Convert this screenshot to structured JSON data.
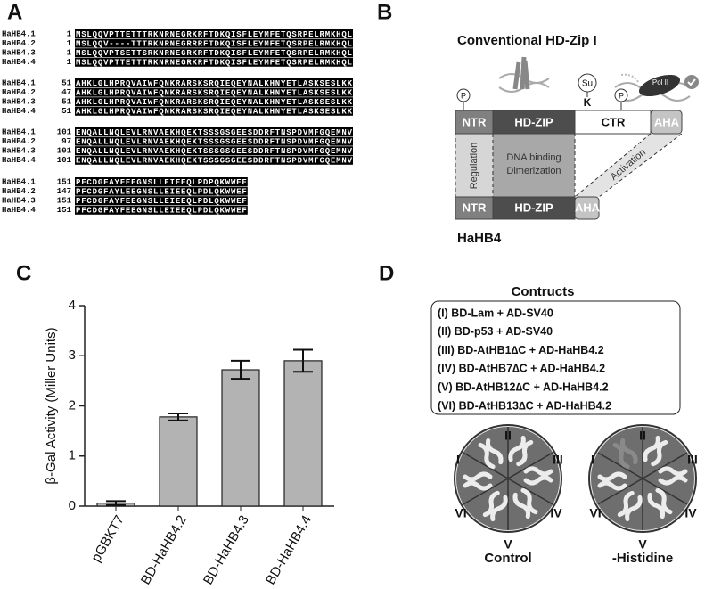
{
  "alignment": {
    "label": "A",
    "blocks": [
      {
        "rows": [
          {
            "name": "HaHB4.1",
            "start": 1,
            "sequence": "MSLQQVPTTETTTRKNRNEGRKRFTDKQISFLEYMFETQSRPELRMKHQL"
          },
          {
            "name": "HaHB4.2",
            "start": 1,
            "sequence": "MSLQQV----TTTRKNRNEGRRRFTDKQISFLEYMFETQSRPELRMKHQL"
          },
          {
            "name": "HaHB4.3",
            "start": 1,
            "sequence": "MSLQQVPTSETTSRKNRNEGRKRFTDKQISFLEYMFETQSRPELRMKHQL"
          },
          {
            "name": "HaHB4.4",
            "start": 1,
            "sequence": "MSLQQVPTTETTTRKNRNEGRKRFTDKQISFLEYMFETQSRPELRMKHQL"
          }
        ]
      },
      {
        "rows": [
          {
            "name": "HaHB4.1",
            "start": 51,
            "sequence": "AHKLGLHPRQVAIWFQNKRARSKSRQIEQEYNALKHNYETLASKSESLKK"
          },
          {
            "name": "HaHB4.2",
            "start": 47,
            "sequence": "AHKLGLHPRQVAIWFQNKRARSKSRQIEQEYNALKHNYETLASKSESLKK"
          },
          {
            "name": "HaHB4.3",
            "start": 51,
            "sequence": "AHKLGLHPRQVAIWFQNKRARSKSRQIEQEYNALKHNYETLASKSESLKK"
          },
          {
            "name": "HaHB4.4",
            "start": 51,
            "sequence": "AHKLGLHPRQVAIWFQNKRARSKSRQIEQEYNALKHNYETLASKSESLKK"
          }
        ]
      },
      {
        "rows": [
          {
            "name": "HaHB4.1",
            "start": 101,
            "sequence": "ENQALLNQLEVLRNVAEKHQEKTSSSGSGEESDDRFTNSPDVMFGQEMNV"
          },
          {
            "name": "HaHB4.2",
            "start": 97,
            "sequence": "ENQALLNQLEVLRNVAEKHQEKTSSSGSGEESDDRFTNSPDVMFGQEMNV"
          },
          {
            "name": "HaHB4.3",
            "start": 101,
            "sequence": "ENQALLNQLEVLRNVAEKHQEKTSSSGSGEESDDRFTNSPDVMFGQEMNV"
          },
          {
            "name": "HaHB4.4",
            "start": 101,
            "sequence": "ENQALLNQLEVLRNVAEKHQEKTSSSGSGEESDDRFTNSPDVMFGQEMNV"
          }
        ]
      },
      {
        "rows": [
          {
            "name": "HaHB4.1",
            "start": 151,
            "sequence": "PFCDGFAYFEEGNSLLEIEEQLPDPQKWWEF"
          },
          {
            "name": "HaHB4.2",
            "start": 147,
            "sequence": "PFCDGFAYLEEGNSLLEIEEQLPDLQKWWEF"
          },
          {
            "name": "HaHB4.3",
            "start": 151,
            "sequence": "PFCDGFAYFEEGNSLLEIEEQLPDLQKWWEF"
          },
          {
            "name": "HaHB4.4",
            "start": 151,
            "sequence": "PFCDGFAYFEEGNSLLEIEEQLPDLQKWWEF"
          }
        ]
      }
    ]
  },
  "diagram": {
    "label": "B",
    "conventional_title": "Conventional HD-Zip I",
    "phospho_1": "P",
    "sumo": "Su",
    "lysine": "K",
    "phospho_2": "P",
    "pol": "Pol II",
    "top_domains": [
      "NTR",
      "HD-ZIP",
      "CTR",
      "AHA"
    ],
    "regulation": "Regulation",
    "dna_binding": "DNA binding",
    "dimerization": "Dimerization",
    "activation": "Activation",
    "bottom_domains": [
      "NTR",
      "HD-ZIP",
      "AHA"
    ],
    "hahb4_title": "HaHB4"
  },
  "chart_data": {
    "type": "bar",
    "label": "C",
    "ylabel": "β-Gal Activity (Miller Units)",
    "categories": [
      "pGBKT7",
      "BD-HaHB4.2",
      "BD-HaHB4.3",
      "BD-HaHB4.4"
    ],
    "values": [
      0.06,
      1.78,
      2.72,
      2.9
    ],
    "errors": [
      0.04,
      0.07,
      0.18,
      0.22
    ],
    "color": "#b3b3b3",
    "ylim": [
      0,
      4
    ],
    "yticks": [
      0,
      1,
      2,
      3,
      4
    ]
  },
  "yeast": {
    "label": "D",
    "title": "Contructs",
    "constructs": [
      "(I) BD-Lam + AD-SV40",
      "(II) BD-p53 + AD-SV40",
      "(III) BD-AtHB1∆C + AD-HaHB4.2",
      "(IV) BD-AtHB7∆C + AD-HaHB4.2",
      "(V) BD-AtHB12∆C + AD-HaHB4.2",
      "(VI) BD-AtHB13∆C + AD-HaHB4.2"
    ],
    "sectors": [
      "I",
      "II",
      "III",
      "IV",
      "V",
      "VI"
    ],
    "plates": [
      "Control",
      "-Histidine"
    ]
  }
}
